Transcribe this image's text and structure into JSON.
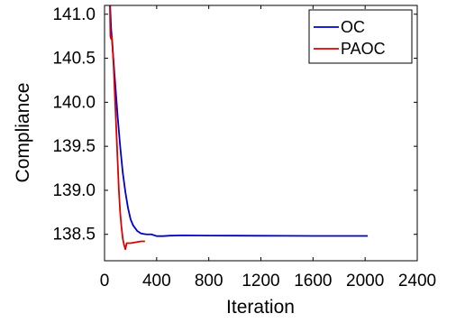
{
  "chart_data": {
    "type": "line",
    "xlabel": "Iteration",
    "ylabel": "Compliance",
    "xlim": [
      0,
      2400
    ],
    "ylim": [
      138.2,
      141.1
    ],
    "x_ticks": [
      0,
      400,
      800,
      1200,
      1600,
      2000,
      2400
    ],
    "x_tick_labels": [
      "0",
      "400",
      "800",
      "1200",
      "1600",
      "2000",
      "2400"
    ],
    "y_ticks": [
      138.5,
      139.0,
      139.5,
      140.0,
      140.5,
      141.0
    ],
    "y_tick_labels": [
      "138.5",
      "139.0",
      "139.5",
      "140.0",
      "140.5",
      "141.0"
    ],
    "grid": false,
    "legend_position": "top-right",
    "series": [
      {
        "name": "OC",
        "color": "#0000cc",
        "x": [
          40,
          50,
          60,
          70,
          80,
          90,
          100,
          120,
          140,
          160,
          180,
          200,
          220,
          250,
          280,
          320,
          360,
          400,
          450,
          500,
          600,
          700,
          800,
          1000,
          1200,
          1400,
          1600,
          1800,
          2020
        ],
        "y": [
          141.2,
          140.85,
          140.65,
          140.45,
          140.25,
          140.05,
          139.85,
          139.5,
          139.2,
          138.98,
          138.8,
          138.67,
          138.6,
          138.54,
          138.51,
          138.5,
          138.5,
          138.48,
          138.48,
          138.485,
          138.488,
          138.487,
          138.486,
          138.485,
          138.484,
          138.483,
          138.482,
          138.482,
          138.482
        ]
      },
      {
        "name": "PAOC",
        "color": "#dd0000",
        "x": [
          40,
          45,
          50,
          55,
          60,
          70,
          80,
          90,
          100,
          110,
          120,
          130,
          140,
          150,
          160,
          170,
          180,
          200,
          240,
          280,
          310
        ],
        "y": [
          141.2,
          140.75,
          140.72,
          140.75,
          140.68,
          140.4,
          140.05,
          139.7,
          139.35,
          139.0,
          138.75,
          138.58,
          138.45,
          138.38,
          138.33,
          138.4,
          138.4,
          138.4,
          138.41,
          138.42,
          138.42
        ]
      }
    ]
  }
}
